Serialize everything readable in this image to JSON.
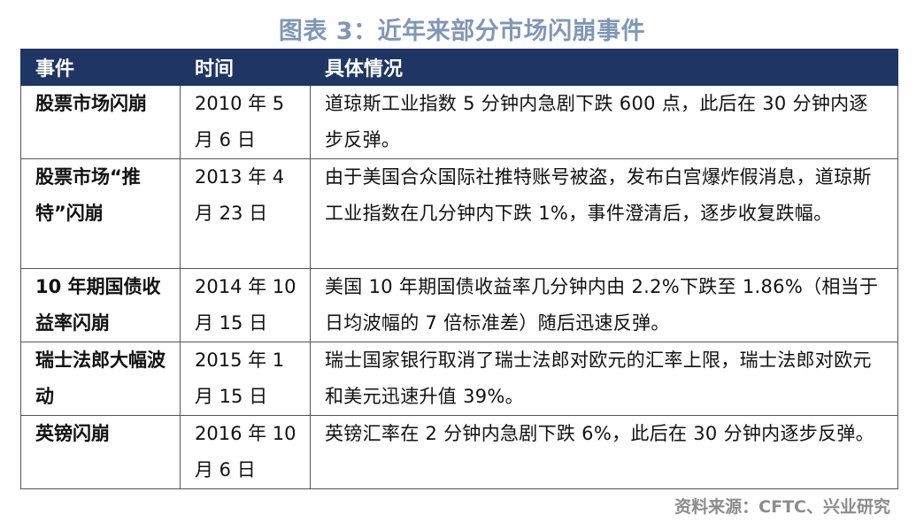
{
  "title": "图表 3：近年来部分市场闪崩事件",
  "table": {
    "headers": [
      "事件",
      "时间",
      "具体情况"
    ],
    "rows": [
      {
        "event": "股票市场闪崩",
        "time": "2010 年 5 月 6 日",
        "detail": "道琼斯工业指数 5 分钟内急剧下跌 600 点，此后在 30 分钟内逐步反弹。"
      },
      {
        "event": "股票市场“推特”闪崩",
        "time": "2013 年 4 月 23 日",
        "detail": "由于美国合众国际社推特账号被盗，发布白宫爆炸假消息，道琼斯工业指数在几分钟内下跌 1%，事件澄清后，逐步收复跌幅。"
      },
      {
        "event": "10 年期国债收益率闪崩",
        "time": "2014 年 10 月 15 日",
        "detail": "美国 10 年期国债收益率几分钟内由 2.2%下跌至 1.86%（相当于日均波幅的 7 倍标准差）随后迅速反弹。"
      },
      {
        "event": "瑞士法郎大幅波动",
        "time": "2015 年 1 月 15 日",
        "detail": "瑞士国家银行取消了瑞士法郎对欧元的汇率上限，瑞士法郎对欧元和美元迅速升值 39%。"
      },
      {
        "event": "英镑闪崩",
        "time": "2016 年 10 月 6 日",
        "detail": "英镑汇率在 2 分钟内急剧下跌 6%，此后在 30 分钟内逐步反弹。"
      }
    ]
  },
  "source": "资料来源：CFTC、兴业研究",
  "colors": {
    "title": "#8097b7",
    "header_bg": "#1f3564",
    "header_text": "#ffffff",
    "border": "#555555",
    "source": "#8c8c8c"
  }
}
